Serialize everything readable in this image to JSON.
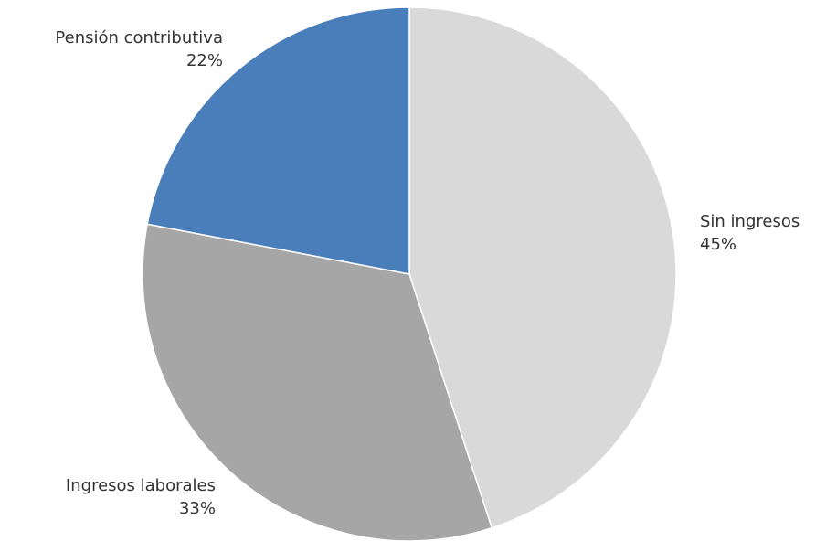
{
  "chart_data": {
    "type": "pie",
    "title": "",
    "start_angle_deg": 0,
    "direction": "clockwise",
    "slices": [
      {
        "label": "Sin ingresos",
        "value": 45,
        "value_label": "45%",
        "color": "#d9d9d9"
      },
      {
        "label": "Ingresos laborales",
        "value": 33,
        "value_label": "33%",
        "color": "#a6a6a6"
      },
      {
        "label": "Pensión contributiva",
        "value": 22,
        "value_label": "22%",
        "color": "#4a7ebb"
      }
    ]
  }
}
